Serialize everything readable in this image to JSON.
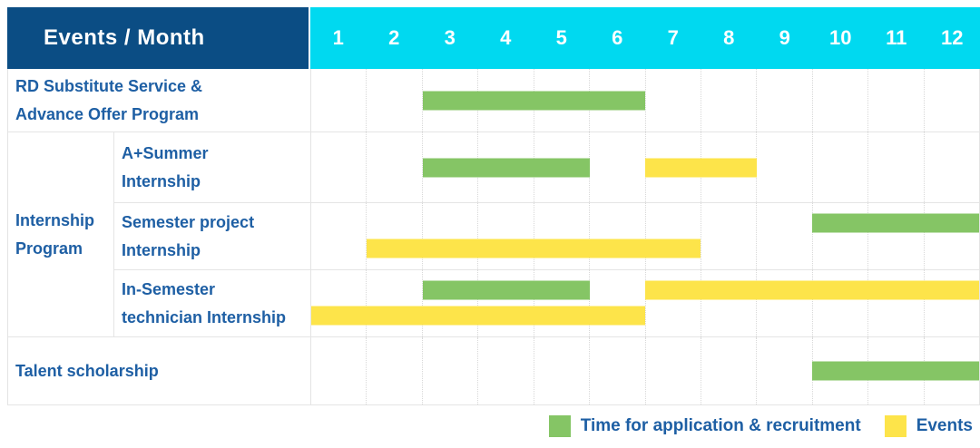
{
  "title": {
    "label": "Events / Month"
  },
  "months": [
    "1",
    "2",
    "3",
    "4",
    "5",
    "6",
    "7",
    "8",
    "9",
    "10",
    "11",
    "12"
  ],
  "group_label_lines": [
    "Internship",
    "Program"
  ],
  "rows": [
    {
      "id": "rd-substitute-service",
      "label_lines": [
        "RD Substitute Service &",
        "Advance Offer Program"
      ],
      "in_group": false,
      "bars": [
        {
          "type": "recruitment",
          "start_month": 3,
          "end_month": 6,
          "lane": "single"
        }
      ]
    },
    {
      "id": "a-plus-summer-internship",
      "label_lines": [
        "A+Summer",
        "Internship"
      ],
      "in_group": true,
      "bars": [
        {
          "type": "recruitment",
          "start_month": 3,
          "end_month": 5,
          "lane": "single"
        },
        {
          "type": "event",
          "start_month": 7,
          "end_month": 8,
          "lane": "single"
        }
      ]
    },
    {
      "id": "semester-project-internship",
      "label_lines": [
        "Semester project",
        "Internship"
      ],
      "in_group": true,
      "bars": [
        {
          "type": "recruitment",
          "start_month": 10,
          "end_month": 12,
          "lane": "top"
        },
        {
          "type": "event",
          "start_month": 2,
          "end_month": 7,
          "lane": "bottom"
        }
      ]
    },
    {
      "id": "in-semester-technician-internship",
      "label_lines": [
        "In-Semester",
        "technician Internship"
      ],
      "in_group": true,
      "bars": [
        {
          "type": "recruitment",
          "start_month": 3,
          "end_month": 5,
          "lane": "top"
        },
        {
          "type": "event",
          "start_month": 7,
          "end_month": 12,
          "lane": "top"
        },
        {
          "type": "event",
          "start_month": 1,
          "end_month": 6,
          "lane": "bottom"
        }
      ]
    },
    {
      "id": "talent-scholarship",
      "label_lines": [
        "Talent scholarship"
      ],
      "in_group": false,
      "bars": [
        {
          "type": "recruitment",
          "start_month": 10,
          "end_month": 12,
          "lane": "single"
        }
      ]
    }
  ],
  "legend": [
    {
      "type": "recruitment",
      "label": "Time for application & recruitment"
    },
    {
      "type": "event",
      "label": "Events"
    }
  ],
  "colors": {
    "recruitment": "#85C565",
    "event": "#FDE44A",
    "header_bg": "#0B4D84",
    "months_bg": "#00D9F0",
    "label_text": "#1E5FA4"
  },
  "chart_data": {
    "type": "table",
    "subtype": "gantt",
    "title": "Events / Month",
    "x": {
      "label": "Month",
      "ticks": [
        1,
        2,
        3,
        4,
        5,
        6,
        7,
        8,
        9,
        10,
        11,
        12
      ],
      "range": [
        1,
        12
      ]
    },
    "legend_entries": [
      "Time for application & recruitment",
      "Events"
    ],
    "legend_position": "bottom-right",
    "grid": true,
    "series": [
      {
        "name": "RD Substitute Service & Advance Offer Program",
        "group": null,
        "spans": [
          {
            "kind": "Time for application & recruitment",
            "months": [
              3,
              6
            ]
          }
        ]
      },
      {
        "name": "A+Summer Internship",
        "group": "Internship Program",
        "spans": [
          {
            "kind": "Time for application & recruitment",
            "months": [
              3,
              5
            ]
          },
          {
            "kind": "Events",
            "months": [
              7,
              8
            ]
          }
        ]
      },
      {
        "name": "Semester project Internship",
        "group": "Internship Program",
        "spans": [
          {
            "kind": "Time for application & recruitment",
            "months": [
              10,
              12
            ]
          },
          {
            "kind": "Events",
            "months": [
              2,
              7
            ]
          }
        ]
      },
      {
        "name": "In-Semester technician Internship",
        "group": "Internship Program",
        "spans": [
          {
            "kind": "Time for application & recruitment",
            "months": [
              3,
              5
            ]
          },
          {
            "kind": "Events",
            "months": [
              7,
              12
            ]
          },
          {
            "kind": "Events",
            "months": [
              1,
              6
            ]
          }
        ]
      },
      {
        "name": "Talent scholarship",
        "group": null,
        "spans": [
          {
            "kind": "Time for application & recruitment",
            "months": [
              10,
              12
            ]
          }
        ]
      }
    ]
  }
}
